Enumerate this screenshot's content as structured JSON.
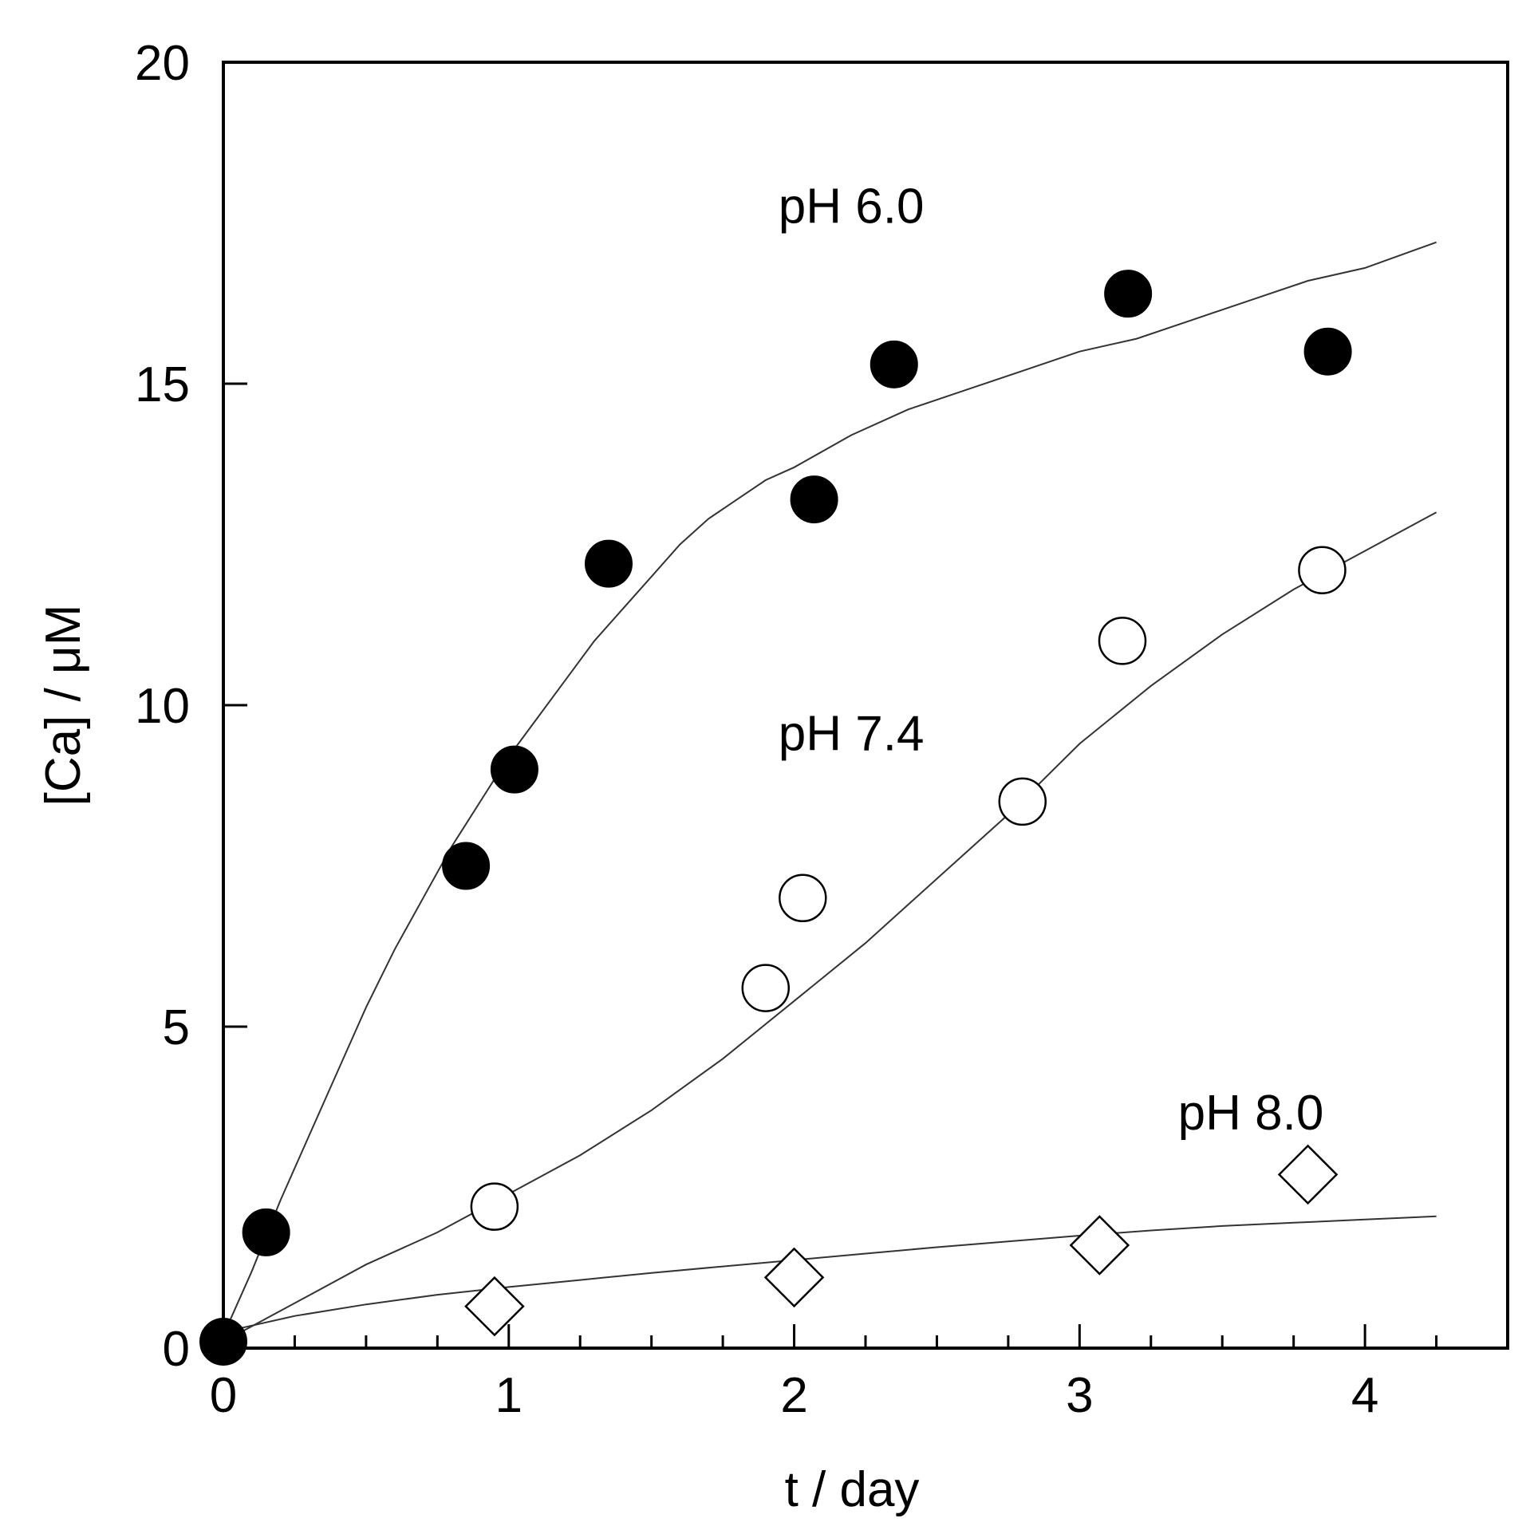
{
  "chart_data": {
    "type": "scatter",
    "title": "",
    "xlabel": "t / day",
    "ylabel": "[Ca] / μM",
    "xlim": [
      0,
      4.5
    ],
    "ylim": [
      0,
      20
    ],
    "xticks": [
      0,
      1,
      2,
      3,
      4
    ],
    "yticks": [
      0,
      5,
      10,
      15,
      20
    ],
    "xtick_labels": [
      "0",
      "1",
      "2",
      "3",
      "4"
    ],
    "ytick_labels": [
      "0",
      "5",
      "10",
      "15",
      "20"
    ],
    "x_minor_step": 0.25,
    "grid": false,
    "series": [
      {
        "name": "pH 6.0",
        "label": "pH 6.0",
        "label_position": {
          "x": 2.2,
          "y": 17.5
        },
        "marker": "filled-circle",
        "x": [
          0,
          0.15,
          0.85,
          1.02,
          1.35,
          2.07,
          2.35,
          3.17,
          3.87
        ],
        "y": [
          0.1,
          1.8,
          7.5,
          9.0,
          12.2,
          13.2,
          15.3,
          16.4,
          15.5
        ],
        "fit_x": [
          0,
          0.1,
          0.2,
          0.3,
          0.4,
          0.5,
          0.6,
          0.7,
          0.8,
          0.9,
          1.0,
          1.1,
          1.2,
          1.3,
          1.4,
          1.5,
          1.6,
          1.7,
          1.8,
          1.9,
          2.0,
          2.2,
          2.4,
          2.6,
          2.8,
          3.0,
          3.2,
          3.4,
          3.6,
          3.8,
          4.0,
          4.25
        ],
        "fit_y": [
          0.2,
          1.2,
          2.3,
          3.3,
          4.3,
          5.3,
          6.2,
          7.0,
          7.8,
          8.5,
          9.2,
          9.8,
          10.4,
          11.0,
          11.5,
          12.0,
          12.5,
          12.9,
          13.2,
          13.5,
          13.7,
          14.2,
          14.6,
          14.9,
          15.2,
          15.5,
          15.7,
          16.0,
          16.3,
          16.6,
          16.8,
          17.2
        ]
      },
      {
        "name": "pH 7.4",
        "label": "pH 7.4",
        "label_position": {
          "x": 2.2,
          "y": 9.3
        },
        "marker": "open-circle",
        "x": [
          0.95,
          1.9,
          2.03,
          2.8,
          3.15,
          3.85
        ],
        "y": [
          2.2,
          5.6,
          7.0,
          8.5,
          11.0,
          12.1
        ],
        "fit_x": [
          0,
          0.25,
          0.5,
          0.75,
          1.0,
          1.25,
          1.5,
          1.75,
          2.0,
          2.25,
          2.5,
          2.75,
          3.0,
          3.25,
          3.5,
          3.75,
          4.0,
          4.25
        ],
        "fit_y": [
          0.1,
          0.7,
          1.3,
          1.8,
          2.4,
          3.0,
          3.7,
          4.5,
          5.4,
          6.3,
          7.3,
          8.3,
          9.4,
          10.3,
          11.1,
          11.8,
          12.4,
          13.0
        ]
      },
      {
        "name": "pH 8.0",
        "label": "pH 8.0",
        "label_position": {
          "x": 3.6,
          "y": 3.4
        },
        "marker": "open-diamond",
        "x": [
          0.95,
          2.0,
          3.07,
          3.8
        ],
        "y": [
          0.65,
          1.1,
          1.6,
          2.7
        ],
        "fit_x": [
          0,
          0.25,
          0.5,
          0.75,
          1.0,
          1.25,
          1.5,
          1.75,
          2.0,
          2.25,
          2.5,
          2.75,
          3.0,
          3.25,
          3.5,
          3.75,
          4.0,
          4.25
        ],
        "fit_y": [
          0.25,
          0.5,
          0.68,
          0.83,
          0.95,
          1.06,
          1.17,
          1.27,
          1.37,
          1.47,
          1.57,
          1.66,
          1.75,
          1.83,
          1.9,
          1.95,
          2.0,
          2.05
        ]
      }
    ]
  }
}
